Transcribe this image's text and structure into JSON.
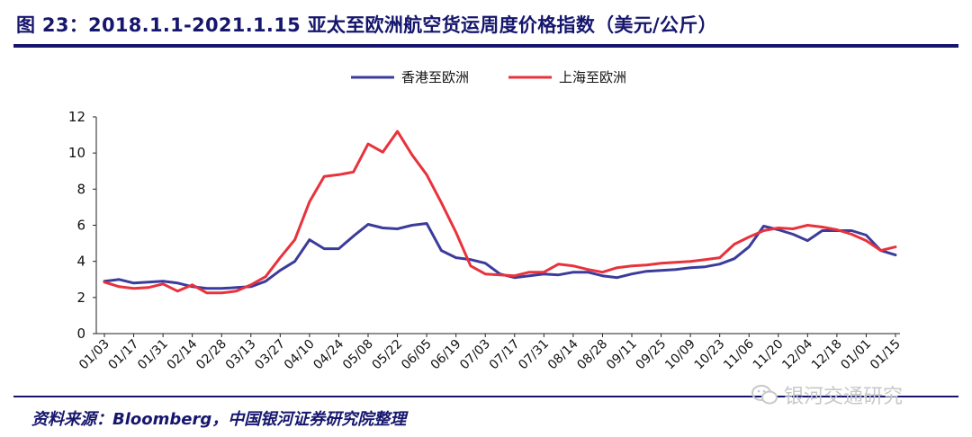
{
  "title": "图 23：2018.1.1-2021.1.15 亚太至欧洲航空货运周度价格指数（美元/公斤）",
  "source": "资料来源：Bloomberg，中国银河证券研究院整理",
  "watermark": "银河交通研究",
  "colors": {
    "title": "#16166e",
    "series_blue": "#3b3b9c",
    "series_red": "#e8323c"
  },
  "chart_data": {
    "type": "line",
    "title": "",
    "xlabel": "",
    "ylabel": "",
    "ylim": [
      0,
      12
    ],
    "yticks": [
      0,
      2,
      4,
      6,
      8,
      10,
      12
    ],
    "grid": false,
    "legend": "top-center",
    "x": [
      "01/03",
      "01/10",
      "01/17",
      "01/24",
      "01/31",
      "02/07",
      "02/14",
      "02/21",
      "02/28",
      "03/06",
      "03/13",
      "03/20",
      "03/27",
      "04/03",
      "04/10",
      "04/17",
      "04/24",
      "05/01",
      "05/08",
      "05/15",
      "05/22",
      "05/29",
      "06/05",
      "06/12",
      "06/19",
      "06/26",
      "07/03",
      "07/10",
      "07/17",
      "07/24",
      "07/31",
      "08/07",
      "08/14",
      "08/21",
      "08/28",
      "09/04",
      "09/11",
      "09/18",
      "09/25",
      "10/02",
      "10/09",
      "10/16",
      "10/23",
      "10/30",
      "11/06",
      "11/13",
      "11/20",
      "11/27",
      "12/04",
      "12/11",
      "12/18",
      "12/25",
      "01/01",
      "01/08",
      "01/15"
    ],
    "tick_labels": [
      "01/03",
      "01/17",
      "01/31",
      "02/14",
      "02/28",
      "03/13",
      "03/27",
      "04/10",
      "04/24",
      "05/08",
      "05/22",
      "06/05",
      "06/19",
      "07/03",
      "07/17",
      "07/31",
      "08/14",
      "08/28",
      "09/11",
      "09/25",
      "10/09",
      "10/23",
      "11/06",
      "11/20",
      "12/04",
      "12/18",
      "01/01",
      "01/15"
    ],
    "series": [
      {
        "name": "香港至欧洲",
        "color": "#3b3b9c",
        "values": [
          2.9,
          3.0,
          2.8,
          2.85,
          2.9,
          2.8,
          2.6,
          2.5,
          2.5,
          2.55,
          2.6,
          2.9,
          3.5,
          4.0,
          5.2,
          4.7,
          4.7,
          5.4,
          6.05,
          5.85,
          5.8,
          6.0,
          6.1,
          4.6,
          4.2,
          4.1,
          3.9,
          3.3,
          3.1,
          3.2,
          3.3,
          3.25,
          3.4,
          3.4,
          3.2,
          3.1,
          3.3,
          3.45,
          3.5,
          3.55,
          3.65,
          3.7,
          3.85,
          4.15,
          4.8,
          5.95,
          5.75,
          5.5,
          5.15,
          5.7,
          5.7,
          5.7,
          5.45,
          4.6,
          4.35
        ]
      },
      {
        "name": "上海至欧洲",
        "color": "#e8323c",
        "values": [
          2.85,
          2.6,
          2.5,
          2.55,
          2.75,
          2.35,
          2.7,
          2.25,
          2.25,
          2.35,
          2.7,
          3.15,
          4.2,
          5.2,
          7.3,
          8.7,
          8.8,
          8.95,
          10.5,
          10.05,
          11.2,
          9.9,
          8.8,
          7.25,
          5.6,
          3.75,
          3.3,
          3.25,
          3.2,
          3.4,
          3.4,
          3.85,
          3.75,
          3.55,
          3.4,
          3.65,
          3.75,
          3.8,
          3.9,
          3.95,
          4.0,
          4.1,
          4.2,
          4.95,
          5.35,
          5.7,
          5.85,
          5.8,
          6.0,
          5.9,
          5.75,
          5.5,
          5.15,
          4.6,
          4.8
        ]
      }
    ]
  }
}
